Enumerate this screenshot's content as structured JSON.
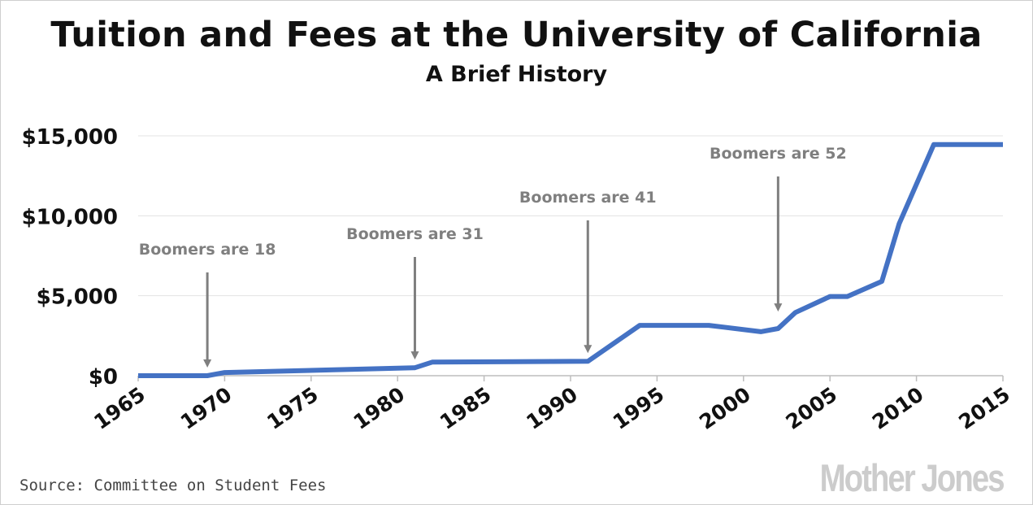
{
  "title": "Tuition and Fees at the University of California",
  "subtitle": "A Brief History",
  "source": "Source: Committee on Student Fees",
  "logo_text": "Mother Jones",
  "colors": {
    "line": "#4472C4",
    "annotation": "#7f7f7f",
    "grid": "#e3e3e3",
    "text": "#111111"
  },
  "chart_data": {
    "type": "line",
    "title": "Tuition and Fees at the University of California",
    "subtitle": "A Brief History",
    "xlim": [
      1965,
      2015
    ],
    "ylim": [
      0,
      15000
    ],
    "x_ticks": [
      1965,
      1970,
      1975,
      1980,
      1985,
      1990,
      1995,
      2000,
      2005,
      2010,
      2015
    ],
    "x_tick_labels": [
      "1965",
      "1970",
      "1975",
      "1980",
      "1985",
      "1990",
      "1995",
      "2000",
      "2005",
      "2010",
      "2015"
    ],
    "y_ticks": [
      0,
      5000,
      10000,
      15000
    ],
    "y_tick_labels": [
      "$0",
      "$5,000",
      "$10,000",
      "$15,000"
    ],
    "grid": "horizontal",
    "series": [
      {
        "x": [
          1965,
          1969,
          1970,
          1981,
          1982,
          1991,
          1994,
          1998,
          2001,
          2002,
          2003,
          2005,
          2006,
          2008,
          2009,
          2011,
          2015
        ],
        "y": [
          0,
          0,
          200,
          500,
          850,
          900,
          3150,
          3150,
          2750,
          2950,
          3950,
          4950,
          4950,
          5900,
          9500,
          14450,
          14450
        ]
      }
    ],
    "annotations": [
      {
        "text": "Boomers are 18",
        "x": 1969,
        "y": 0
      },
      {
        "text": "Boomers are 31",
        "x": 1981,
        "y": 500
      },
      {
        "text": "Boomers are 41",
        "x": 1991,
        "y": 900
      },
      {
        "text": "Boomers are 52",
        "x": 2002,
        "y": 3500
      }
    ]
  }
}
